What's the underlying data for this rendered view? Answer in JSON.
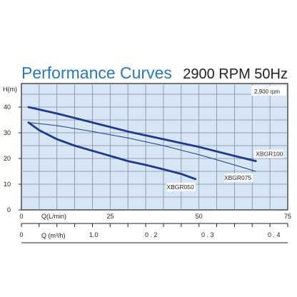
{
  "chart_data": {
    "type": "line",
    "title": "Performance Curves",
    "subtitle": "2900 RPM  50Hz",
    "speed_note": "2,900 rpm",
    "ylabel": "H(m)",
    "xlabel": "Q(L/min)",
    "x2label": "Q (m³/h)",
    "ylim": [
      0,
      45
    ],
    "xlim": [
      0,
      75
    ],
    "yticks": [
      "0",
      "10",
      "20",
      "30",
      "40"
    ],
    "xticks": [
      "0",
      "25",
      "50",
      "75"
    ],
    "x2ticks": [
      "0",
      "1.0",
      "0 . 2",
      "0 . 3",
      "0 . 4"
    ],
    "grid": true,
    "series": [
      {
        "name": "XBGR100",
        "style": "solid",
        "x": [
          2,
          10,
          20,
          30,
          40,
          50,
          60,
          66
        ],
        "y": [
          40,
          37.5,
          34,
          30.5,
          27.5,
          24.5,
          21,
          19
        ]
      },
      {
        "name": "XBGR075",
        "style": "thin",
        "x": [
          2,
          10,
          20,
          30,
          40,
          50,
          60,
          66
        ],
        "y": [
          34,
          32.8,
          30.5,
          28,
          25,
          21.5,
          17.5,
          15
        ]
      },
      {
        "name": "XBGR050",
        "style": "solid",
        "x": [
          2,
          5,
          10,
          15,
          20,
          25,
          30,
          35,
          40,
          45,
          49
        ],
        "y": [
          34,
          31,
          27.5,
          25,
          23,
          21,
          19,
          17.5,
          15.8,
          14,
          12
        ]
      }
    ]
  },
  "colors": {
    "title": "#2a78b5",
    "curve": "#1f3a8c",
    "thin_curve": "#1f3a8c",
    "grid": "#7a8fa0",
    "plot_bg": "#d6e6f5",
    "axis_text": "#222222"
  }
}
